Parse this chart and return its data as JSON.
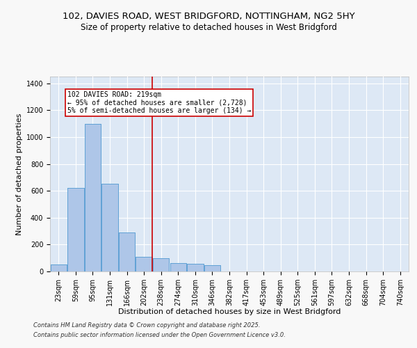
{
  "title_line1": "102, DAVIES ROAD, WEST BRIDGFORD, NOTTINGHAM, NG2 5HY",
  "title_line2": "Size of property relative to detached houses in West Bridgford",
  "xlabel": "Distribution of detached houses by size in West Bridgford",
  "ylabel": "Number of detached properties",
  "bin_labels": [
    "23sqm",
    "59sqm",
    "95sqm",
    "131sqm",
    "166sqm",
    "202sqm",
    "238sqm",
    "274sqm",
    "310sqm",
    "346sqm",
    "382sqm",
    "417sqm",
    "453sqm",
    "489sqm",
    "525sqm",
    "561sqm",
    "597sqm",
    "632sqm",
    "668sqm",
    "704sqm",
    "740sqm"
  ],
  "bar_values": [
    50,
    620,
    1100,
    650,
    290,
    110,
    100,
    60,
    55,
    45,
    0,
    0,
    0,
    0,
    0,
    0,
    0,
    0,
    0,
    0,
    0
  ],
  "bar_color": "#aec6e8",
  "bar_edge_color": "#5a9fd4",
  "background_color": "#dde8f5",
  "grid_color": "#ffffff",
  "vline_x": 5.47,
  "vline_color": "#cc0000",
  "annotation_text": "102 DAVIES ROAD: 219sqm\n← 95% of detached houses are smaller (2,728)\n5% of semi-detached houses are larger (134) →",
  "annotation_box_color": "#cc0000",
  "ylim": [
    0,
    1450
  ],
  "yticks": [
    0,
    200,
    400,
    600,
    800,
    1000,
    1200,
    1400
  ],
  "footer_line1": "Contains HM Land Registry data © Crown copyright and database right 2025.",
  "footer_line2": "Contains public sector information licensed under the Open Government Licence v3.0.",
  "title_fontsize": 9.5,
  "subtitle_fontsize": 8.5,
  "axis_label_fontsize": 8,
  "tick_fontsize": 7,
  "annotation_fontsize": 7,
  "footer_fontsize": 6,
  "fig_facecolor": "#f8f8f8"
}
